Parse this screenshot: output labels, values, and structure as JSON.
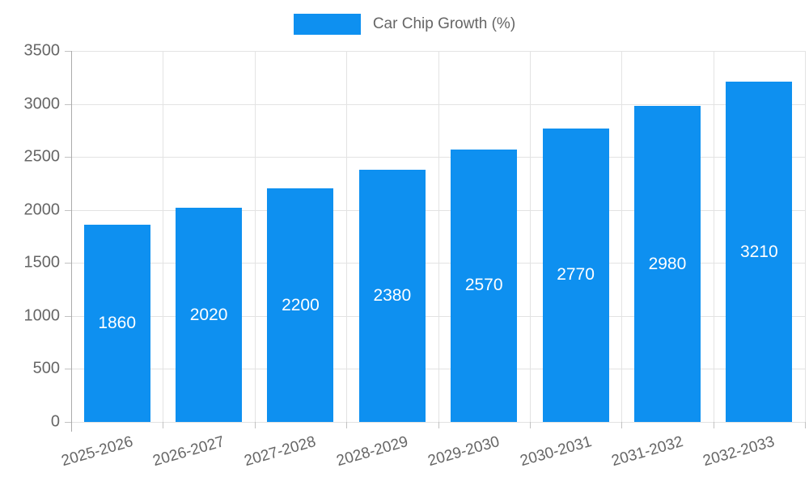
{
  "chart_data": {
    "type": "bar",
    "title": "Car Chip Growth (%)",
    "legend_label": "Car Chip Growth (%)",
    "legend_position": "top",
    "categories": [
      "2025-2026",
      "2026-2027",
      "2027-2028",
      "2028-2029",
      "2029-2030",
      "2030-2031",
      "2031-2032",
      "2032-2033"
    ],
    "values": [
      1860,
      2020,
      2200,
      2380,
      2570,
      2770,
      2980,
      3210
    ],
    "value_labels": [
      "1860",
      "2020",
      "2200",
      "2380",
      "2570",
      "2770",
      "2980",
      "3210"
    ],
    "y_tick_labels": [
      "0",
      "500",
      "1000",
      "1500",
      "2000",
      "2500",
      "3000",
      "3500"
    ],
    "ylim": [
      0,
      3500
    ],
    "ytick_step": 500,
    "xlabel": "",
    "ylabel": "",
    "grid": true,
    "colors": {
      "bar": "#0e90f0",
      "value_label": "#ffffff",
      "axis_text": "#666666",
      "gridline": "#e3e3e3",
      "axis_line": "#ababab"
    }
  }
}
